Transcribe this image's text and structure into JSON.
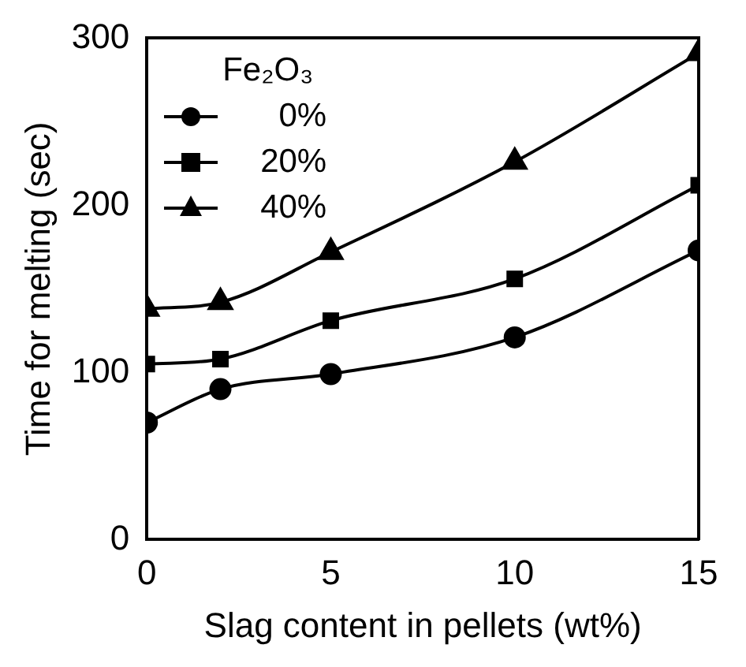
{
  "chart_data": {
    "type": "line",
    "xlabel": "Slag content in pellets (wt%)",
    "ylabel": "Time for melting (sec)",
    "legend_title": "Fe₂O₃",
    "x": [
      0,
      2,
      5,
      10,
      15
    ],
    "series": [
      {
        "name": "0%",
        "color": "#000000",
        "marker": "circle",
        "values": [
          70,
          90,
          99,
          121,
          173
        ]
      },
      {
        "name": "20%",
        "color": "#000000",
        "marker": "square",
        "values": [
          105,
          108,
          131,
          156,
          212
        ]
      },
      {
        "name": "40%",
        "color": "#000000",
        "marker": "triangle",
        "values": [
          138,
          142,
          172,
          226,
          291
        ]
      }
    ],
    "xlim": [
      0,
      15
    ],
    "xticks": [
      0,
      5,
      10,
      15
    ],
    "ylim": [
      0,
      300
    ],
    "yticks": [
      0,
      100,
      200,
      300
    ],
    "grid": false,
    "legend": "top left",
    "line_style": "solid"
  }
}
